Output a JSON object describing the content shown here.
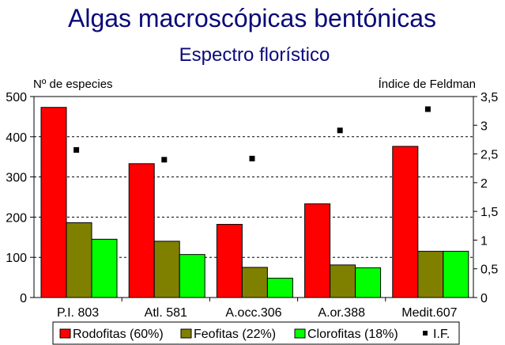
{
  "chart_data": {
    "type": "bar",
    "title": "Algas macroscópicas bentónicas",
    "subtitle": "Espectro florístico",
    "ylabel": "Nº de especies",
    "y2label": "Índice de Feldman",
    "categories": [
      "P.I. 803",
      "Atl. 581",
      "A.occ.306",
      "A.or.388",
      "Medit.607"
    ],
    "series": [
      {
        "name": "Rodofitas (60%)",
        "color": "#ff0000",
        "values": [
          473,
          333,
          182,
          233,
          376
        ]
      },
      {
        "name": "Feofitas (22%)",
        "color": "#808000",
        "values": [
          186,
          140,
          75,
          81,
          115
        ]
      },
      {
        "name": "Clorofitas (18%)",
        "color": "#00ff00",
        "values": [
          145,
          107,
          48,
          74,
          115
        ]
      }
    ],
    "secondary_series": {
      "name": "I.F.",
      "type": "scatter",
      "marker": "square",
      "color": "#000000",
      "values": [
        2.57,
        2.4,
        2.42,
        2.91,
        3.28
      ]
    },
    "ylim": [
      0,
      500
    ],
    "yticks": [
      "0",
      "100",
      "200",
      "300",
      "400",
      "500"
    ],
    "y2lim": [
      0,
      3.5
    ],
    "y2ticks": [
      "0",
      "0,5",
      "1",
      "1,5",
      "2",
      "2,5",
      "3",
      "3,5"
    ],
    "grid": "horizontal dashed",
    "legend_position": "bottom"
  }
}
